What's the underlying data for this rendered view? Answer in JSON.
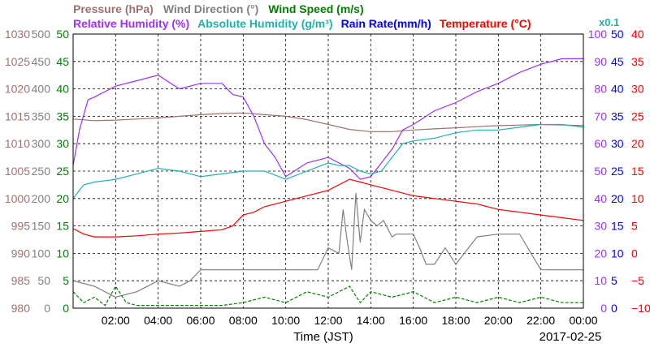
{
  "colors": {
    "pressure": "#a07070",
    "wind_direction": "#808080",
    "wind_speed": "#008000",
    "relative_humidity": "#9b30ff",
    "absolute_humidity": "#20b2aa",
    "rain_rate": "#0000ff",
    "temperature": "#ff0000",
    "grid": "#000000"
  },
  "legend": {
    "row1": [
      {
        "key": "pressure",
        "label": "Pressure (hPa)"
      },
      {
        "key": "wind_direction",
        "label": "Wind Direction (°)"
      },
      {
        "key": "wind_speed",
        "label": "Wind Speed (m/s)"
      }
    ],
    "row2": [
      {
        "key": "relative_humidity",
        "label": "Relative Humidity (%)"
      },
      {
        "key": "absolute_humidity",
        "label": "Absolute Humidity (g/m³)"
      },
      {
        "key": "rain_rate",
        "label": "Rain Rate(mm/h)"
      },
      {
        "key": "temperature",
        "label": "Temperature (°C)"
      }
    ],
    "multiplier": "x0.1"
  },
  "chart_data": {
    "type": "line",
    "xlabel": "Time (JST)",
    "date_label": "2017-02-25",
    "x_range_hours": [
      0,
      24
    ],
    "x_ticks": [
      "02:00",
      "04:00",
      "06:00",
      "08:00",
      "10:00",
      "12:00",
      "14:00",
      "16:00",
      "18:00",
      "20:00",
      "22:00",
      "00:00"
    ],
    "x_tick_hours": [
      2,
      4,
      6,
      8,
      10,
      12,
      14,
      16,
      18,
      20,
      22,
      24
    ],
    "grid": true,
    "axes": {
      "pressure": {
        "min": 980,
        "max": 1030,
        "ticks": [
          "980",
          "985",
          "990",
          "995",
          "1000",
          "1005",
          "1010",
          "1015",
          "1020",
          "1025",
          "1030"
        ]
      },
      "wind_direction": {
        "min": 0,
        "max": 500,
        "ticks": [
          "0",
          "50",
          "100",
          "150",
          "200",
          "250",
          "300",
          "350",
          "400",
          "450",
          "500"
        ]
      },
      "wind_speed": {
        "min": 0,
        "max": 50,
        "ticks": [
          "0",
          "5",
          "10",
          "15",
          "20",
          "25",
          "30",
          "35",
          "40",
          "45",
          "50"
        ]
      },
      "relative_humidity": {
        "min": 0,
        "max": 100,
        "ticks": [
          "0",
          "10",
          "20",
          "30",
          "40",
          "50",
          "60",
          "70",
          "80",
          "90",
          "100"
        ]
      },
      "rain_rate": {
        "min": 0,
        "max": 50,
        "ticks": [
          "0",
          "5",
          "10",
          "15",
          "20",
          "25",
          "30",
          "35",
          "40",
          "45",
          "50"
        ]
      },
      "temperature": {
        "min": -10,
        "max": 40,
        "ticks": [
          "−10",
          "−5",
          "0",
          "5",
          "10",
          "15",
          "20",
          "25",
          "30",
          "35",
          "40"
        ]
      }
    },
    "series": [
      {
        "key": "pressure",
        "axis": "pressure",
        "points": [
          [
            0,
            1014.5
          ],
          [
            1,
            1014.2
          ],
          [
            2,
            1014.3
          ],
          [
            3,
            1014.5
          ],
          [
            4,
            1014.7
          ],
          [
            5,
            1015.0
          ],
          [
            6,
            1015.3
          ],
          [
            7,
            1015.5
          ],
          [
            8,
            1015.6
          ],
          [
            9,
            1015.3
          ],
          [
            10,
            1015.0
          ],
          [
            11,
            1014.4
          ],
          [
            12,
            1013.5
          ],
          [
            13,
            1012.6
          ],
          [
            14,
            1012.2
          ],
          [
            15,
            1012.2
          ],
          [
            16,
            1012.5
          ],
          [
            17,
            1012.7
          ],
          [
            18,
            1012.9
          ],
          [
            19,
            1013.1
          ],
          [
            20,
            1013.3
          ],
          [
            21,
            1013.4
          ],
          [
            22,
            1013.5
          ],
          [
            23,
            1013.4
          ],
          [
            24,
            1013.3
          ]
        ]
      },
      {
        "key": "wind_direction",
        "axis": "wind_direction",
        "points": [
          [
            0,
            50
          ],
          [
            1,
            40
          ],
          [
            2,
            20
          ],
          [
            3,
            30
          ],
          [
            4,
            50
          ],
          [
            5,
            40
          ],
          [
            5.5,
            50
          ],
          [
            6,
            70
          ],
          [
            8,
            70
          ],
          [
            8.2,
            70
          ],
          [
            9,
            70
          ],
          [
            10,
            70
          ],
          [
            11.5,
            70
          ],
          [
            12,
            110
          ],
          [
            12.5,
            100
          ],
          [
            12.7,
            180
          ],
          [
            12.9,
            120
          ],
          [
            13.1,
            70
          ],
          [
            13.3,
            210
          ],
          [
            13.5,
            120
          ],
          [
            13.7,
            180
          ],
          [
            14,
            160
          ],
          [
            14.3,
            150
          ],
          [
            14.6,
            160
          ],
          [
            15,
            130
          ],
          [
            15.2,
            135
          ],
          [
            16,
            135
          ],
          [
            16.3,
            110
          ],
          [
            16.6,
            80
          ],
          [
            17,
            80
          ],
          [
            17.5,
            110
          ],
          [
            18,
            80
          ],
          [
            19,
            130
          ],
          [
            20,
            135
          ],
          [
            21,
            135
          ],
          [
            22,
            70
          ],
          [
            23,
            70
          ],
          [
            24,
            70
          ]
        ]
      },
      {
        "key": "wind_speed",
        "axis": "wind_speed",
        "points": [
          [
            0,
            3
          ],
          [
            0.5,
            1
          ],
          [
            1,
            2
          ],
          [
            1.5,
            0.5
          ],
          [
            2,
            4
          ],
          [
            2.5,
            1
          ],
          [
            3,
            0.5
          ],
          [
            4,
            0.5
          ],
          [
            5,
            0.5
          ],
          [
            6,
            0.5
          ],
          [
            7,
            0.5
          ],
          [
            8,
            1
          ],
          [
            9,
            2
          ],
          [
            10,
            1
          ],
          [
            11,
            3
          ],
          [
            12,
            2
          ],
          [
            13,
            4
          ],
          [
            13.5,
            1
          ],
          [
            14,
            3
          ],
          [
            15,
            2
          ],
          [
            16,
            3
          ],
          [
            17,
            1
          ],
          [
            18,
            2
          ],
          [
            19,
            1
          ],
          [
            20,
            2
          ],
          [
            21,
            1
          ],
          [
            22,
            2
          ],
          [
            23,
            1
          ],
          [
            24,
            1
          ]
        ]
      },
      {
        "key": "relative_humidity",
        "axis": "relative_humidity",
        "points": [
          [
            0,
            52
          ],
          [
            0.3,
            65
          ],
          [
            0.7,
            76
          ],
          [
            1,
            77
          ],
          [
            2,
            81
          ],
          [
            3,
            83
          ],
          [
            4,
            85
          ],
          [
            5,
            80
          ],
          [
            6,
            82
          ],
          [
            7,
            82
          ],
          [
            7.5,
            78
          ],
          [
            8,
            77
          ],
          [
            8.5,
            70
          ],
          [
            9,
            60
          ],
          [
            9.5,
            55
          ],
          [
            10,
            48
          ],
          [
            11,
            53
          ],
          [
            12,
            55
          ],
          [
            12.5,
            53
          ],
          [
            13,
            51
          ],
          [
            13.5,
            47
          ],
          [
            14,
            48
          ],
          [
            14.5,
            53
          ],
          [
            15,
            58
          ],
          [
            15.5,
            65
          ],
          [
            16,
            67
          ],
          [
            17,
            72
          ],
          [
            18,
            75
          ],
          [
            19,
            79
          ],
          [
            20,
            82
          ],
          [
            21,
            86
          ],
          [
            22,
            89
          ],
          [
            23,
            91
          ],
          [
            24,
            91
          ]
        ]
      },
      {
        "key": "absolute_humidity",
        "axis": "relative_humidity",
        "points": [
          [
            0,
            40
          ],
          [
            0.5,
            45
          ],
          [
            1,
            46
          ],
          [
            2,
            47
          ],
          [
            3,
            49
          ],
          [
            4,
            51
          ],
          [
            5,
            50
          ],
          [
            6,
            48
          ],
          [
            7,
            49
          ],
          [
            8,
            50
          ],
          [
            9,
            50
          ],
          [
            10,
            47
          ],
          [
            11,
            50
          ],
          [
            12,
            53
          ],
          [
            12.5,
            52
          ],
          [
            13,
            52
          ],
          [
            13.5,
            50
          ],
          [
            14,
            49
          ],
          [
            14.5,
            50
          ],
          [
            15,
            55
          ],
          [
            15.5,
            60
          ],
          [
            16,
            61
          ],
          [
            17,
            62
          ],
          [
            18,
            64
          ],
          [
            19,
            65
          ],
          [
            20,
            65
          ],
          [
            21,
            66
          ],
          [
            22,
            67
          ],
          [
            23,
            67
          ],
          [
            24,
            66
          ]
        ]
      },
      {
        "key": "temperature",
        "axis": "temperature",
        "points": [
          [
            0,
            4.5
          ],
          [
            0.5,
            3.5
          ],
          [
            1,
            3.0
          ],
          [
            2,
            3.0
          ],
          [
            3,
            3.2
          ],
          [
            4,
            3.5
          ],
          [
            5,
            3.7
          ],
          [
            6,
            4.0
          ],
          [
            7,
            4.3
          ],
          [
            7.5,
            5
          ],
          [
            8,
            7
          ],
          [
            8.5,
            7.5
          ],
          [
            9,
            8.5
          ],
          [
            10,
            9.5
          ],
          [
            11,
            10.5
          ],
          [
            12,
            11.5
          ],
          [
            12.5,
            12.5
          ],
          [
            13,
            13.5
          ],
          [
            13.5,
            13
          ],
          [
            14,
            12.5
          ],
          [
            15,
            11.5
          ],
          [
            16,
            10.5
          ],
          [
            17,
            10
          ],
          [
            18,
            9.5
          ],
          [
            19,
            9
          ],
          [
            20,
            8
          ],
          [
            21,
            7.5
          ],
          [
            22,
            7
          ],
          [
            23,
            6.5
          ],
          [
            24,
            6
          ]
        ]
      }
    ]
  }
}
